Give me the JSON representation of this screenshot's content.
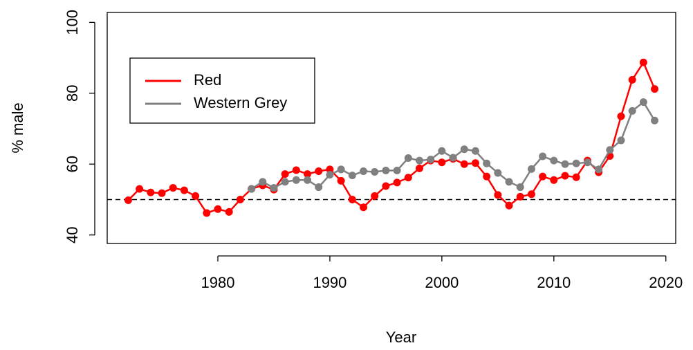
{
  "chart_data": {
    "type": "line",
    "x_label": "Year",
    "y_label": "% male",
    "x": [
      1972,
      1973,
      1974,
      1975,
      1976,
      1977,
      1978,
      1979,
      1980,
      1981,
      1982,
      1983,
      1984,
      1985,
      1986,
      1987,
      1988,
      1989,
      1990,
      1991,
      1992,
      1993,
      1994,
      1995,
      1996,
      1997,
      1998,
      1999,
      2000,
      2001,
      2002,
      2003,
      2004,
      2005,
      2006,
      2007,
      2008,
      2009,
      2010,
      2011,
      2012,
      2013,
      2014,
      2015,
      2016,
      2017,
      2018,
      2019
    ],
    "series": [
      {
        "name": "Red",
        "color": "#ff0000",
        "values": [
          49.8,
          53,
          52,
          51.8,
          53.3,
          52.6,
          51,
          46.2,
          47.3,
          46.5,
          50,
          53,
          54,
          52.8,
          57.2,
          58.3,
          57.2,
          58,
          58.5,
          55.3,
          50,
          47.8,
          51,
          53.8,
          54.8,
          56.2,
          58.8,
          61,
          60.5,
          61.5,
          60,
          60.3,
          56.5,
          51.3,
          48.3,
          50.8,
          51.5,
          56.5,
          55.5,
          56.7,
          56.3,
          61,
          57.7,
          62.3,
          73.5,
          83.8,
          88.7,
          81.2
        ]
      },
      {
        "name": "Western Grey",
        "color": "#808080",
        "values": [
          null,
          null,
          null,
          null,
          null,
          null,
          null,
          null,
          null,
          null,
          null,
          53,
          55,
          53.3,
          55,
          55.5,
          55.5,
          53.5,
          57,
          58.5,
          56.8,
          58,
          57.8,
          58.2,
          58.2,
          61.7,
          61,
          61.3,
          63.7,
          61.8,
          64.2,
          63.7,
          60.2,
          57.5,
          55,
          53.5,
          58.6,
          62.2,
          61,
          60,
          60.2,
          60.5,
          58.5,
          64,
          66.7,
          75,
          77.5,
          72.3
        ]
      }
    ],
    "xlim": [
      1970.12,
      2020.88
    ],
    "xticks": [
      1980,
      1990,
      2000,
      2010,
      2020
    ],
    "ylim": [
      37.6,
      102.8
    ],
    "yticks": [
      40,
      60,
      80,
      100
    ],
    "hline": 50,
    "legend": "top-left",
    "grid": false
  }
}
